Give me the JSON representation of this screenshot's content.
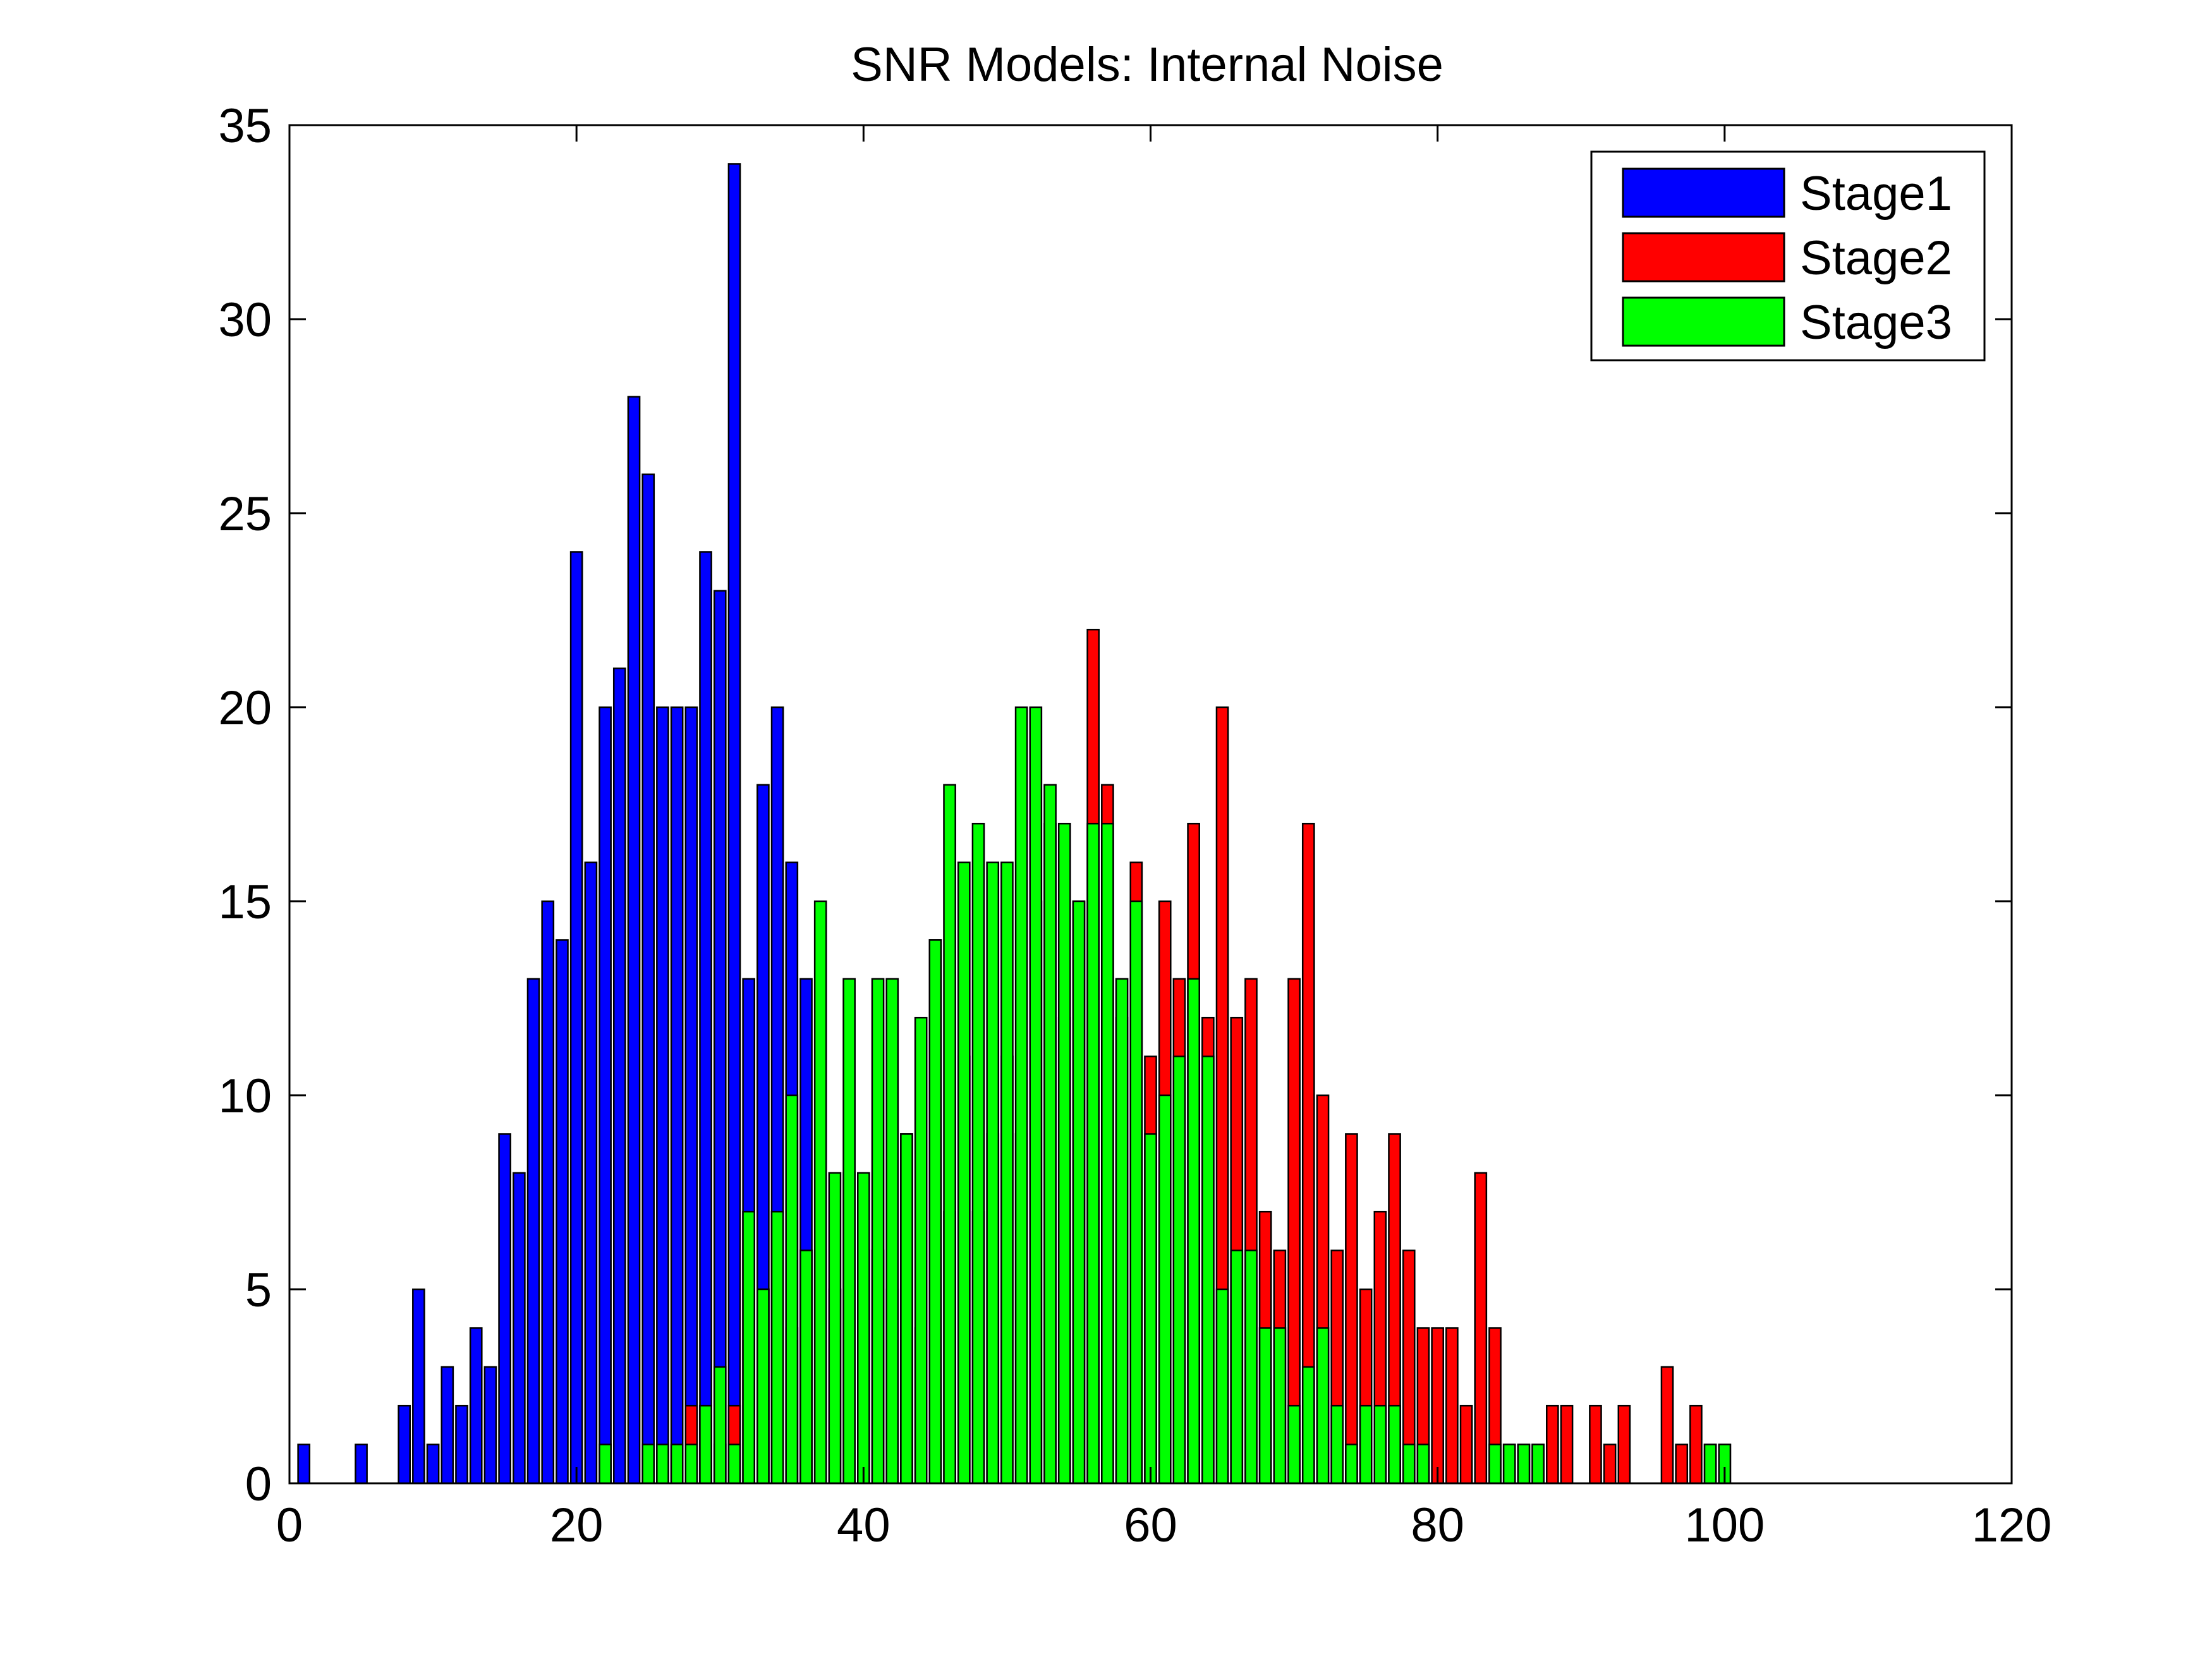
{
  "chart_data": {
    "type": "bar",
    "title": "SNR Models: Internal Noise",
    "xlabel": "",
    "ylabel": "",
    "xlim": [
      0,
      120
    ],
    "ylim": [
      0,
      35
    ],
    "xticks": [
      "0",
      "20",
      "40",
      "60",
      "80",
      "100",
      "120"
    ],
    "yticks": [
      "0",
      "5",
      "10",
      "15",
      "20",
      "25",
      "30",
      "35"
    ],
    "grid": false,
    "legend_position": "top-right",
    "bar_width": 0.8,
    "series": [
      {
        "name": "Stage1",
        "color": "#0000ff",
        "x": [
          1,
          5,
          8,
          9,
          10,
          11,
          12,
          13,
          14,
          15,
          16,
          17,
          18,
          19,
          20,
          21,
          22,
          23,
          24,
          25,
          26,
          27,
          28,
          29,
          30,
          31,
          32,
          33,
          34,
          35,
          36
        ],
        "values": [
          1,
          1,
          2,
          5,
          1,
          3,
          2,
          4,
          3,
          9,
          8,
          13,
          15,
          14,
          24,
          16,
          20,
          21,
          28,
          26,
          20,
          20,
          20,
          24,
          23,
          34,
          13,
          18,
          20,
          16,
          13
        ]
      },
      {
        "name": "Stage2",
        "color": "#ff0000",
        "x": [
          28,
          29,
          30,
          31,
          32,
          33,
          34,
          35,
          36,
          37,
          38,
          39,
          40,
          41,
          42,
          43,
          44,
          45,
          46,
          47,
          48,
          49,
          50,
          51,
          52,
          53,
          54,
          55,
          56,
          57,
          58,
          59,
          60,
          61,
          62,
          63,
          64,
          65,
          66,
          67,
          68,
          69,
          70,
          71,
          72,
          73,
          74,
          75,
          76,
          77,
          78,
          79,
          80,
          81,
          82,
          83,
          84,
          85,
          86,
          87,
          88,
          89,
          91,
          92,
          93,
          96,
          97,
          98,
          99,
          100
        ],
        "values": [
          2,
          2,
          1,
          2,
          7,
          5,
          7,
          4,
          6,
          6,
          5,
          8,
          6,
          6,
          5,
          9,
          4,
          14,
          7,
          11,
          7,
          9,
          11,
          9,
          15,
          17,
          12,
          15,
          22,
          18,
          12,
          16,
          11,
          15,
          13,
          17,
          12,
          20,
          12,
          13,
          7,
          6,
          13,
          17,
          10,
          6,
          9,
          5,
          7,
          9,
          6,
          4,
          4,
          4,
          2,
          8,
          4,
          1,
          1,
          1,
          2,
          2,
          2,
          1,
          2,
          3,
          1,
          2,
          1,
          1
        ]
      },
      {
        "name": "Stage3",
        "color": "#00ff00",
        "x": [
          22,
          25,
          26,
          27,
          28,
          29,
          30,
          31,
          32,
          33,
          34,
          35,
          36,
          37,
          38,
          39,
          40,
          41,
          42,
          43,
          44,
          45,
          46,
          47,
          48,
          49,
          50,
          51,
          52,
          53,
          54,
          55,
          56,
          57,
          58,
          59,
          60,
          61,
          62,
          63,
          64,
          65,
          66,
          67,
          68,
          69,
          70,
          71,
          72,
          73,
          74,
          75,
          76,
          77,
          78,
          79,
          84,
          85,
          86,
          87,
          99,
          100
        ],
        "values": [
          1,
          1,
          1,
          1,
          1,
          2,
          3,
          1,
          7,
          5,
          7,
          10,
          6,
          15,
          8,
          13,
          8,
          13,
          13,
          9,
          12,
          14,
          18,
          16,
          17,
          16,
          16,
          20,
          20,
          18,
          17,
          15,
          17,
          17,
          13,
          15,
          9,
          10,
          11,
          13,
          11,
          5,
          6,
          6,
          4,
          4,
          2,
          3,
          4,
          2,
          1,
          2,
          2,
          2,
          1,
          1,
          1,
          1,
          1,
          1,
          1,
          1
        ]
      }
    ]
  }
}
